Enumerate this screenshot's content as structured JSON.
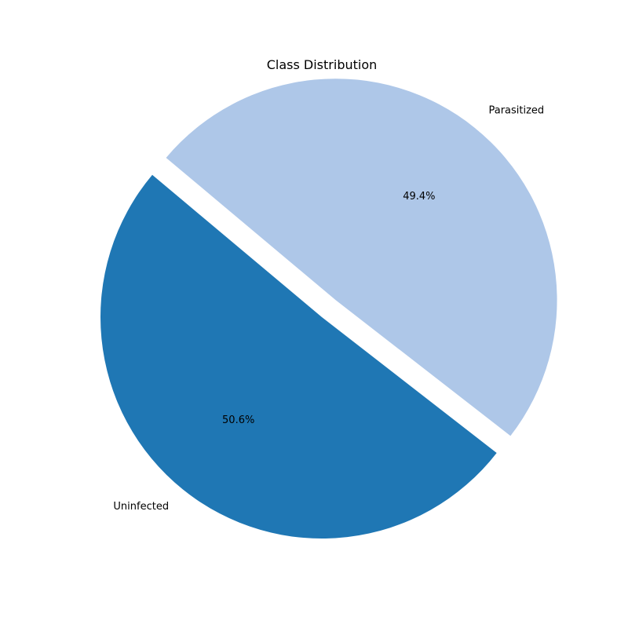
{
  "chart_data": {
    "type": "pie",
    "title": "Class Distribution",
    "slices": [
      {
        "label": "Uninfected",
        "value": 50.6,
        "pct_label": "50.6%",
        "color": "#1f77b4",
        "exploded": false
      },
      {
        "label": "Parasitized",
        "value": 49.4,
        "pct_label": "49.4%",
        "color": "#aec7e8",
        "exploded": true
      }
    ],
    "start_angle_deg": 140,
    "direction": "counterclockwise",
    "legend": "none"
  }
}
